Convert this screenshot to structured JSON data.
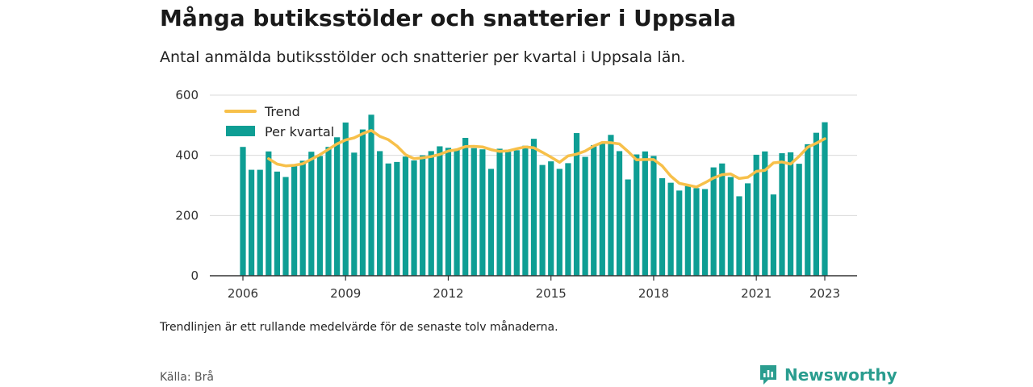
{
  "title": "Många butiksstölder och snatterier i Uppsala",
  "subtitle": "Antal anmälda butiksstölder och snatterier per kvartal i Uppsala län.",
  "footnote": "Trendlinjen är ett rullande medelvärde för de senaste tolv månaderna.",
  "source": "Källa: Brå",
  "brand": {
    "name": "Newsworthy",
    "icon": "newsworthy-logo-icon",
    "color": "#2a9d8f"
  },
  "colors": {
    "bars": "#0e9e94",
    "trend": "#f7c04a",
    "grid": "#d9d9d9",
    "axis": "#333333"
  },
  "chart_data": {
    "type": "bar",
    "x_start": "2006 Q1",
    "x_ticks": [
      "2006",
      "2009",
      "2012",
      "2015",
      "2018",
      "2021",
      "2023"
    ],
    "ylim": [
      0,
      600
    ],
    "y_ticks": [
      0,
      200,
      400,
      600
    ],
    "grid": true,
    "legend_position": "top-left",
    "series": [
      {
        "name": "Per kvartal",
        "type": "bar",
        "values": [
          428,
          352,
          352,
          413,
          346,
          328,
          369,
          382,
          412,
          398,
          428,
          460,
          509,
          409,
          486,
          535,
          414,
          373,
          378,
          396,
          383,
          400,
          414,
          430,
          425,
          418,
          458,
          424,
          420,
          355,
          422,
          412,
          417,
          432,
          455,
          368,
          380,
          355,
          374,
          474,
          395,
          434,
          444,
          468,
          414,
          320,
          403,
          413,
          398,
          324,
          309,
          283,
          298,
          291,
          288,
          360,
          373,
          328,
          264,
          307,
          402,
          413,
          270,
          407,
          410,
          372,
          437,
          475,
          510
        ]
      },
      {
        "name": "Trend",
        "type": "line",
        "values": [
          null,
          null,
          null,
          389,
          371,
          365,
          367,
          372,
          387,
          402,
          420,
          438,
          451,
          458,
          472,
          483,
          463,
          452,
          431,
          402,
          389,
          392,
          396,
          403,
          414,
          419,
          429,
          430,
          428,
          419,
          413,
          415,
          422,
          428,
          425,
          410,
          394,
          377,
          398,
          404,
          414,
          431,
          443,
          442,
          438,
          413,
          385,
          386,
          386,
          365,
          331,
          307,
          301,
          295,
          309,
          325,
          336,
          338,
          323,
          327,
          347,
          350,
          375,
          378,
          371,
          397,
          427,
          440,
          455
        ]
      }
    ]
  }
}
